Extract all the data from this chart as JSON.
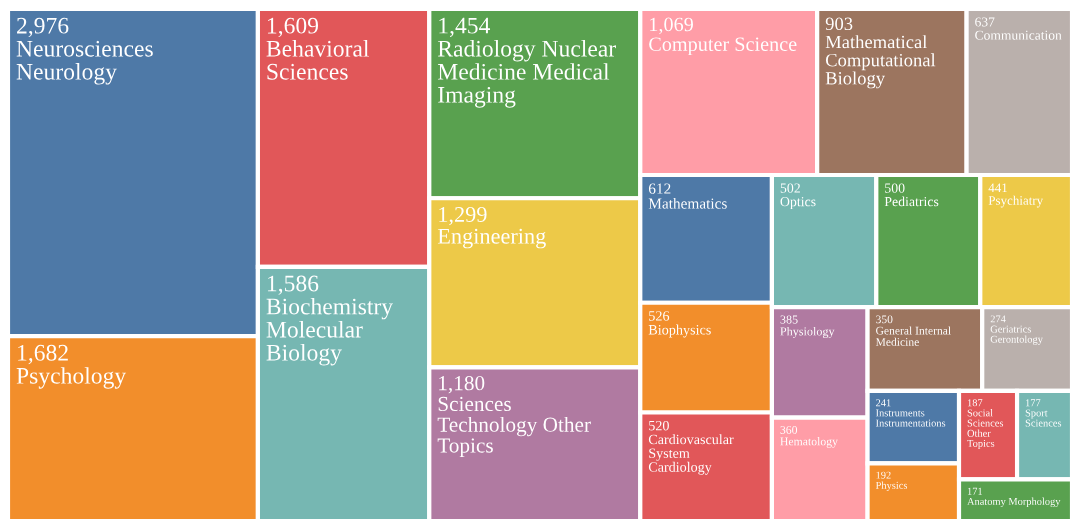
{
  "chart_data": {
    "type": "other",
    "categories": [
      "Neurosciences Neurology",
      "Psychology",
      "Behavioral Sciences",
      "Biochemistry Molecular Biology",
      "Radiology Nuclear Medicine Medical Imaging",
      "Engineering",
      "Sciences Technology Other Topics",
      "Computer Science",
      "Mathematical Computational Biology",
      "Communication",
      "Mathematics",
      "Biophysics",
      "Cardiovascular System Cardiology",
      "Optics",
      "Pediatrics",
      "Psychiatry",
      "Physiology",
      "Hematology",
      "General Internal Medicine",
      "Geriatrics Gerontology",
      "Instruments Instrumentations",
      "Physics",
      "Social Sciences Other Topics",
      "Sport Sciences",
      "Anatomy Morphology"
    ],
    "values": [
      2976,
      1682,
      1609,
      1586,
      1454,
      1299,
      1180,
      1069,
      903,
      637,
      612,
      526,
      520,
      502,
      500,
      441,
      385,
      360,
      350,
      274,
      241,
      192,
      187,
      177,
      171
    ],
    "value_labels": [
      "2,976",
      "1,682",
      "1,609",
      "1,586",
      "1,454",
      "1,299",
      "1,180",
      "1,069",
      "903",
      "637",
      "612",
      "526",
      "520",
      "502",
      "500",
      "441",
      "385",
      "360",
      "350",
      "274",
      "241",
      "192",
      "187",
      "177",
      "171"
    ],
    "colors": [
      "#4e79a7",
      "#f28e2b",
      "#e15759",
      "#76b7b2",
      "#59a14f",
      "#edc948",
      "#b07aa1",
      "#ff9da7",
      "#9c755f",
      "#bab0ac",
      "#4e79a7",
      "#f28e2b",
      "#e15759",
      "#76b7b2",
      "#59a14f",
      "#edc948",
      "#b07aa1",
      "#ff9da7",
      "#9c755f",
      "#bab0ac",
      "#4e79a7",
      "#f28e2b",
      "#e15759",
      "#76b7b2",
      "#59a14f"
    ]
  }
}
